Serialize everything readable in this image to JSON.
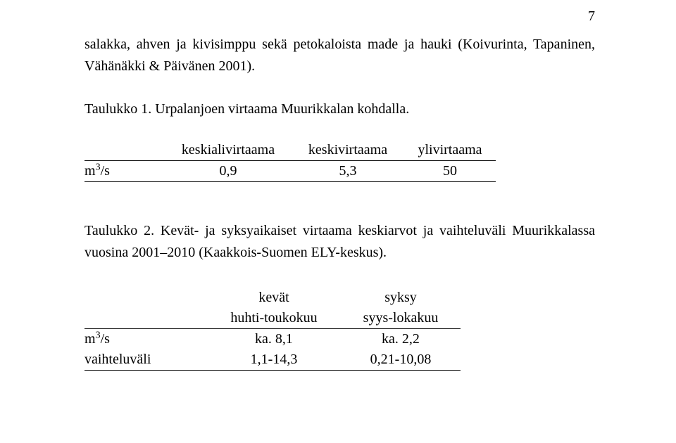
{
  "page_number": "7",
  "paragraph": "salakka, ahven ja kivisimppu sekä petokaloista made ja hauki (Koivurinta, Tapaninen, Vähänäkki & Päivänen 2001).",
  "table1": {
    "caption": "Taulukko 1. Urpalanjoen virtaama Muurikkalan kohdalla.",
    "headers": [
      "keskialivirtaama",
      "keskivirtaama",
      "ylivirtaama"
    ],
    "row_label_unit": "m",
    "row_label_exp": "3",
    "row_label_suffix": "/s",
    "values": [
      "0,9",
      "5,3",
      "50"
    ]
  },
  "table2": {
    "caption": "Taulukko 2. Kevät- ja syksyaikaiset virtaama keskiarvot ja vaihteluväli Muurikkalassa vuosina 2001–2010 (Kaakkois-Suomen ELY-keskus).",
    "col_top": [
      "kevät",
      "syksy"
    ],
    "col_sub": [
      "huhti-toukokuu",
      "syys-lokakuu"
    ],
    "rows": [
      {
        "label_unit": "m",
        "label_exp": "3",
        "label_suffix": "/s",
        "v1": "ka. 8,1",
        "v2": "ka. 2,2"
      },
      {
        "label": "vaihteluväli",
        "v1": "1,1-14,3",
        "v2": "0,21-10,08"
      }
    ]
  }
}
